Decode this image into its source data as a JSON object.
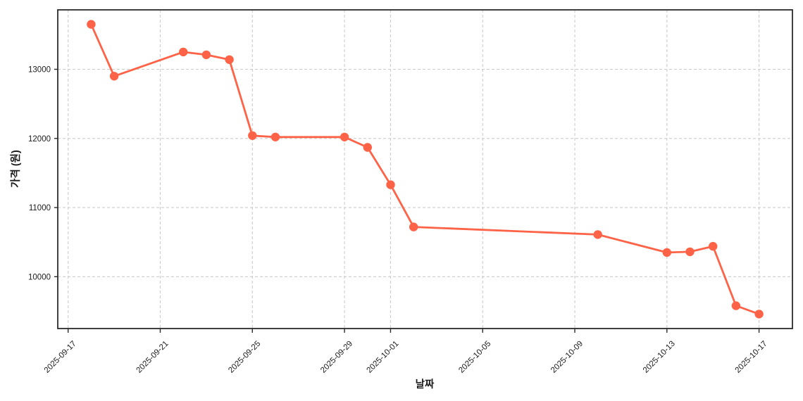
{
  "chart_data": {
    "type": "line",
    "title": "",
    "xlabel": "날짜",
    "ylabel": "가격 (원)",
    "legend": false,
    "grid": true,
    "grid_style": "dashed",
    "axes": {
      "x_origin": "2025-09-17",
      "x_ticks": [
        "2025-09-17",
        "2025-09-21",
        "2025-09-25",
        "2025-09-29",
        "2025-10-01",
        "2025-10-05",
        "2025-10-09",
        "2025-10-13",
        "2025-10-17"
      ],
      "y_ticks": [
        10000,
        11000,
        12000,
        13000
      ],
      "xlim_days": [
        -0.45,
        31.45
      ],
      "ylim": [
        9250,
        13860
      ]
    },
    "style": {
      "line_color": "#FF6347",
      "marker": "circle",
      "marker_radius": 6.2,
      "line_width": 2.8,
      "grid_color": "#cccccc",
      "spine_color": "#2b2b2b",
      "text_color": "#1a1a1a",
      "background": "#ffffff"
    },
    "series": [
      {
        "dates": [
          "2025-09-18",
          "2025-09-19",
          "2025-09-22",
          "2025-09-23",
          "2025-09-24",
          "2025-09-25",
          "2025-09-26",
          "2025-09-29",
          "2025-09-30",
          "2025-10-01",
          "2025-10-02",
          "2025-10-10",
          "2025-10-13",
          "2025-10-14",
          "2025-10-15",
          "2025-10-16",
          "2025-10-17"
        ],
        "values": [
          13650,
          12900,
          13250,
          13210,
          13140,
          12040,
          12020,
          12020,
          11870,
          11330,
          10720,
          10610,
          10350,
          10360,
          10440,
          9580,
          9460
        ]
      }
    ]
  }
}
